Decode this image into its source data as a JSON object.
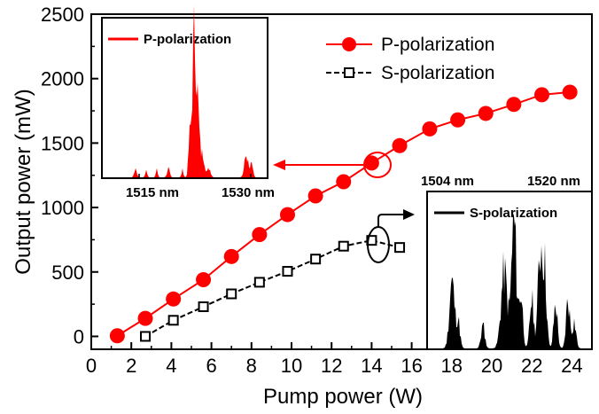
{
  "chart_data": {
    "type": "line",
    "xlabel": "Pump power (W)",
    "ylabel": "Output power (mW)",
    "xlim": [
      0,
      25
    ],
    "ylim": [
      -100,
      2500
    ],
    "xticks": [
      "0",
      "2",
      "4",
      "6",
      "8",
      "10",
      "12",
      "14",
      "16",
      "18",
      "20",
      "22",
      "24"
    ],
    "yticks": [
      "0",
      "500",
      "1000",
      "1500",
      "2000",
      "2500"
    ],
    "legend_position": "top-right",
    "series": [
      {
        "name": "P-polarization",
        "color": "#ff0000",
        "marker": "filled-circle",
        "x": [
          1.3,
          2.7,
          4.1,
          5.6,
          7.0,
          8.4,
          9.8,
          11.2,
          12.6,
          14.0,
          15.4,
          16.9,
          18.3,
          19.7,
          21.1,
          22.5,
          23.9
        ],
        "y": [
          5,
          140,
          290,
          440,
          620,
          790,
          945,
          1090,
          1200,
          1345,
          1480,
          1610,
          1680,
          1730,
          1800,
          1875,
          1895
        ]
      },
      {
        "name": "S-polarization",
        "color": "#000000",
        "marker": "open-square",
        "x": [
          2.7,
          4.1,
          5.6,
          7.0,
          8.4,
          9.8,
          11.2,
          12.6,
          14.0,
          15.4
        ],
        "y": [
          0,
          125,
          230,
          330,
          420,
          505,
          600,
          700,
          745,
          690
        ]
      }
    ],
    "insets": [
      {
        "label": "P-polarization",
        "tick_labels": [
          "1515 nm",
          "1530 nm"
        ],
        "color": "#ff0000"
      },
      {
        "label": "S-polarization",
        "top_labels": [
          "1504 nm",
          "1520 nm"
        ],
        "color": "#000000"
      }
    ]
  }
}
